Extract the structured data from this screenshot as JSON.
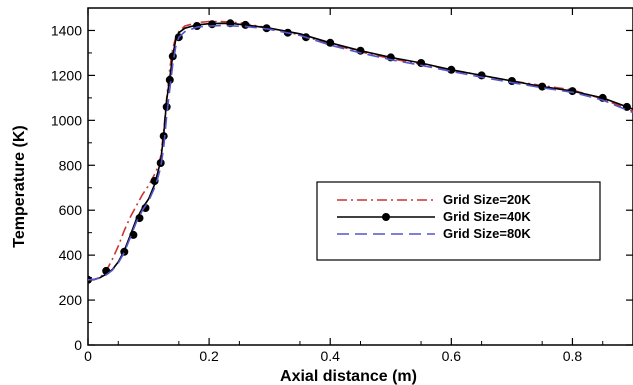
{
  "chart_data": {
    "type": "line",
    "title": "",
    "xlabel": "Axial distance (m)",
    "ylabel": "Temperature (K)",
    "xlim": [
      0,
      0.9
    ],
    "ylim": [
      0,
      1500
    ],
    "xticks": [
      0,
      0.2,
      0.4,
      0.6,
      0.8
    ],
    "xtick_labels": [
      "0",
      "0.2",
      "0.4",
      "0.6",
      "0.8"
    ],
    "yticks": [
      0,
      200,
      400,
      600,
      800,
      1000,
      1200,
      1400
    ],
    "ytick_labels": [
      "0",
      "200",
      "400",
      "600",
      "800",
      "1000",
      "1200",
      "1400"
    ],
    "grid": false,
    "legend_position": "center-right",
    "series": [
      {
        "name": "Grid Size=20K",
        "color": "#cc3333",
        "dash": "dash-dot",
        "marker": "none",
        "x": [
          0,
          0.01,
          0.02,
          0.03,
          0.04,
          0.05,
          0.06,
          0.07,
          0.08,
          0.09,
          0.1,
          0.11,
          0.115,
          0.12,
          0.125,
          0.13,
          0.135,
          0.14,
          0.145,
          0.15,
          0.16,
          0.18,
          0.2,
          0.22,
          0.24,
          0.26,
          0.3,
          0.35,
          0.4,
          0.45,
          0.5,
          0.55,
          0.6,
          0.65,
          0.7,
          0.75,
          0.8,
          0.85,
          0.9
        ],
        "y": [
          290,
          290,
          300,
          330,
          380,
          440,
          510,
          570,
          620,
          670,
          710,
          760,
          790,
          840,
          950,
          1100,
          1230,
          1320,
          1370,
          1395,
          1420,
          1435,
          1440,
          1440,
          1437,
          1430,
          1410,
          1380,
          1340,
          1305,
          1275,
          1250,
          1225,
          1200,
          1175,
          1155,
          1135,
          1095,
          1040
        ]
      },
      {
        "name": "Grid Size=40K",
        "color": "#000000",
        "dash": "solid",
        "marker": "circle",
        "x": [
          0,
          0.01,
          0.02,
          0.03,
          0.04,
          0.05,
          0.06,
          0.07,
          0.08,
          0.09,
          0.1,
          0.11,
          0.115,
          0.12,
          0.125,
          0.13,
          0.135,
          0.14,
          0.145,
          0.15,
          0.16,
          0.18,
          0.2,
          0.22,
          0.24,
          0.26,
          0.3,
          0.35,
          0.4,
          0.45,
          0.5,
          0.55,
          0.6,
          0.65,
          0.7,
          0.75,
          0.8,
          0.85,
          0.9
        ],
        "y": [
          290,
          292,
          300,
          315,
          335,
          370,
          420,
          490,
          560,
          610,
          650,
          715,
          765,
          820,
          935,
          1090,
          1190,
          1290,
          1360,
          1390,
          1410,
          1425,
          1430,
          1432,
          1430,
          1425,
          1410,
          1385,
          1345,
          1310,
          1280,
          1255,
          1225,
          1200,
          1175,
          1150,
          1130,
          1100,
          1050
        ],
        "markers_x": [
          0,
          0.03,
          0.06,
          0.075,
          0.085,
          0.095,
          0.11,
          0.12,
          0.125,
          0.13,
          0.135,
          0.14,
          0.15,
          0.18,
          0.205,
          0.235,
          0.26,
          0.295,
          0.33,
          0.36,
          0.4,
          0.45,
          0.5,
          0.55,
          0.6,
          0.65,
          0.7,
          0.75,
          0.8,
          0.85,
          0.89
        ],
        "markers_y": [
          290,
          330,
          415,
          490,
          565,
          610,
          730,
          810,
          930,
          1060,
          1180,
          1285,
          1370,
          1420,
          1428,
          1432,
          1425,
          1410,
          1390,
          1370,
          1345,
          1310,
          1280,
          1255,
          1225,
          1200,
          1175,
          1150,
          1130,
          1100,
          1060
        ]
      },
      {
        "name": "Grid Size=80K",
        "color": "#5555cc",
        "dash": "long-dash",
        "marker": "none",
        "x": [
          0,
          0.01,
          0.02,
          0.03,
          0.04,
          0.05,
          0.06,
          0.07,
          0.08,
          0.09,
          0.1,
          0.11,
          0.115,
          0.12,
          0.125,
          0.13,
          0.135,
          0.14,
          0.145,
          0.15,
          0.16,
          0.18,
          0.2,
          0.22,
          0.24,
          0.26,
          0.3,
          0.35,
          0.4,
          0.45,
          0.5,
          0.55,
          0.6,
          0.65,
          0.7,
          0.75,
          0.8,
          0.85,
          0.9
        ],
        "y": [
          290,
          292,
          298,
          312,
          332,
          365,
          412,
          480,
          548,
          600,
          640,
          700,
          740,
          790,
          880,
          1020,
          1140,
          1250,
          1330,
          1370,
          1395,
          1415,
          1420,
          1422,
          1420,
          1418,
          1405,
          1378,
          1335,
          1300,
          1270,
          1245,
          1218,
          1192,
          1168,
          1145,
          1125,
          1090,
          1035
        ]
      }
    ]
  }
}
